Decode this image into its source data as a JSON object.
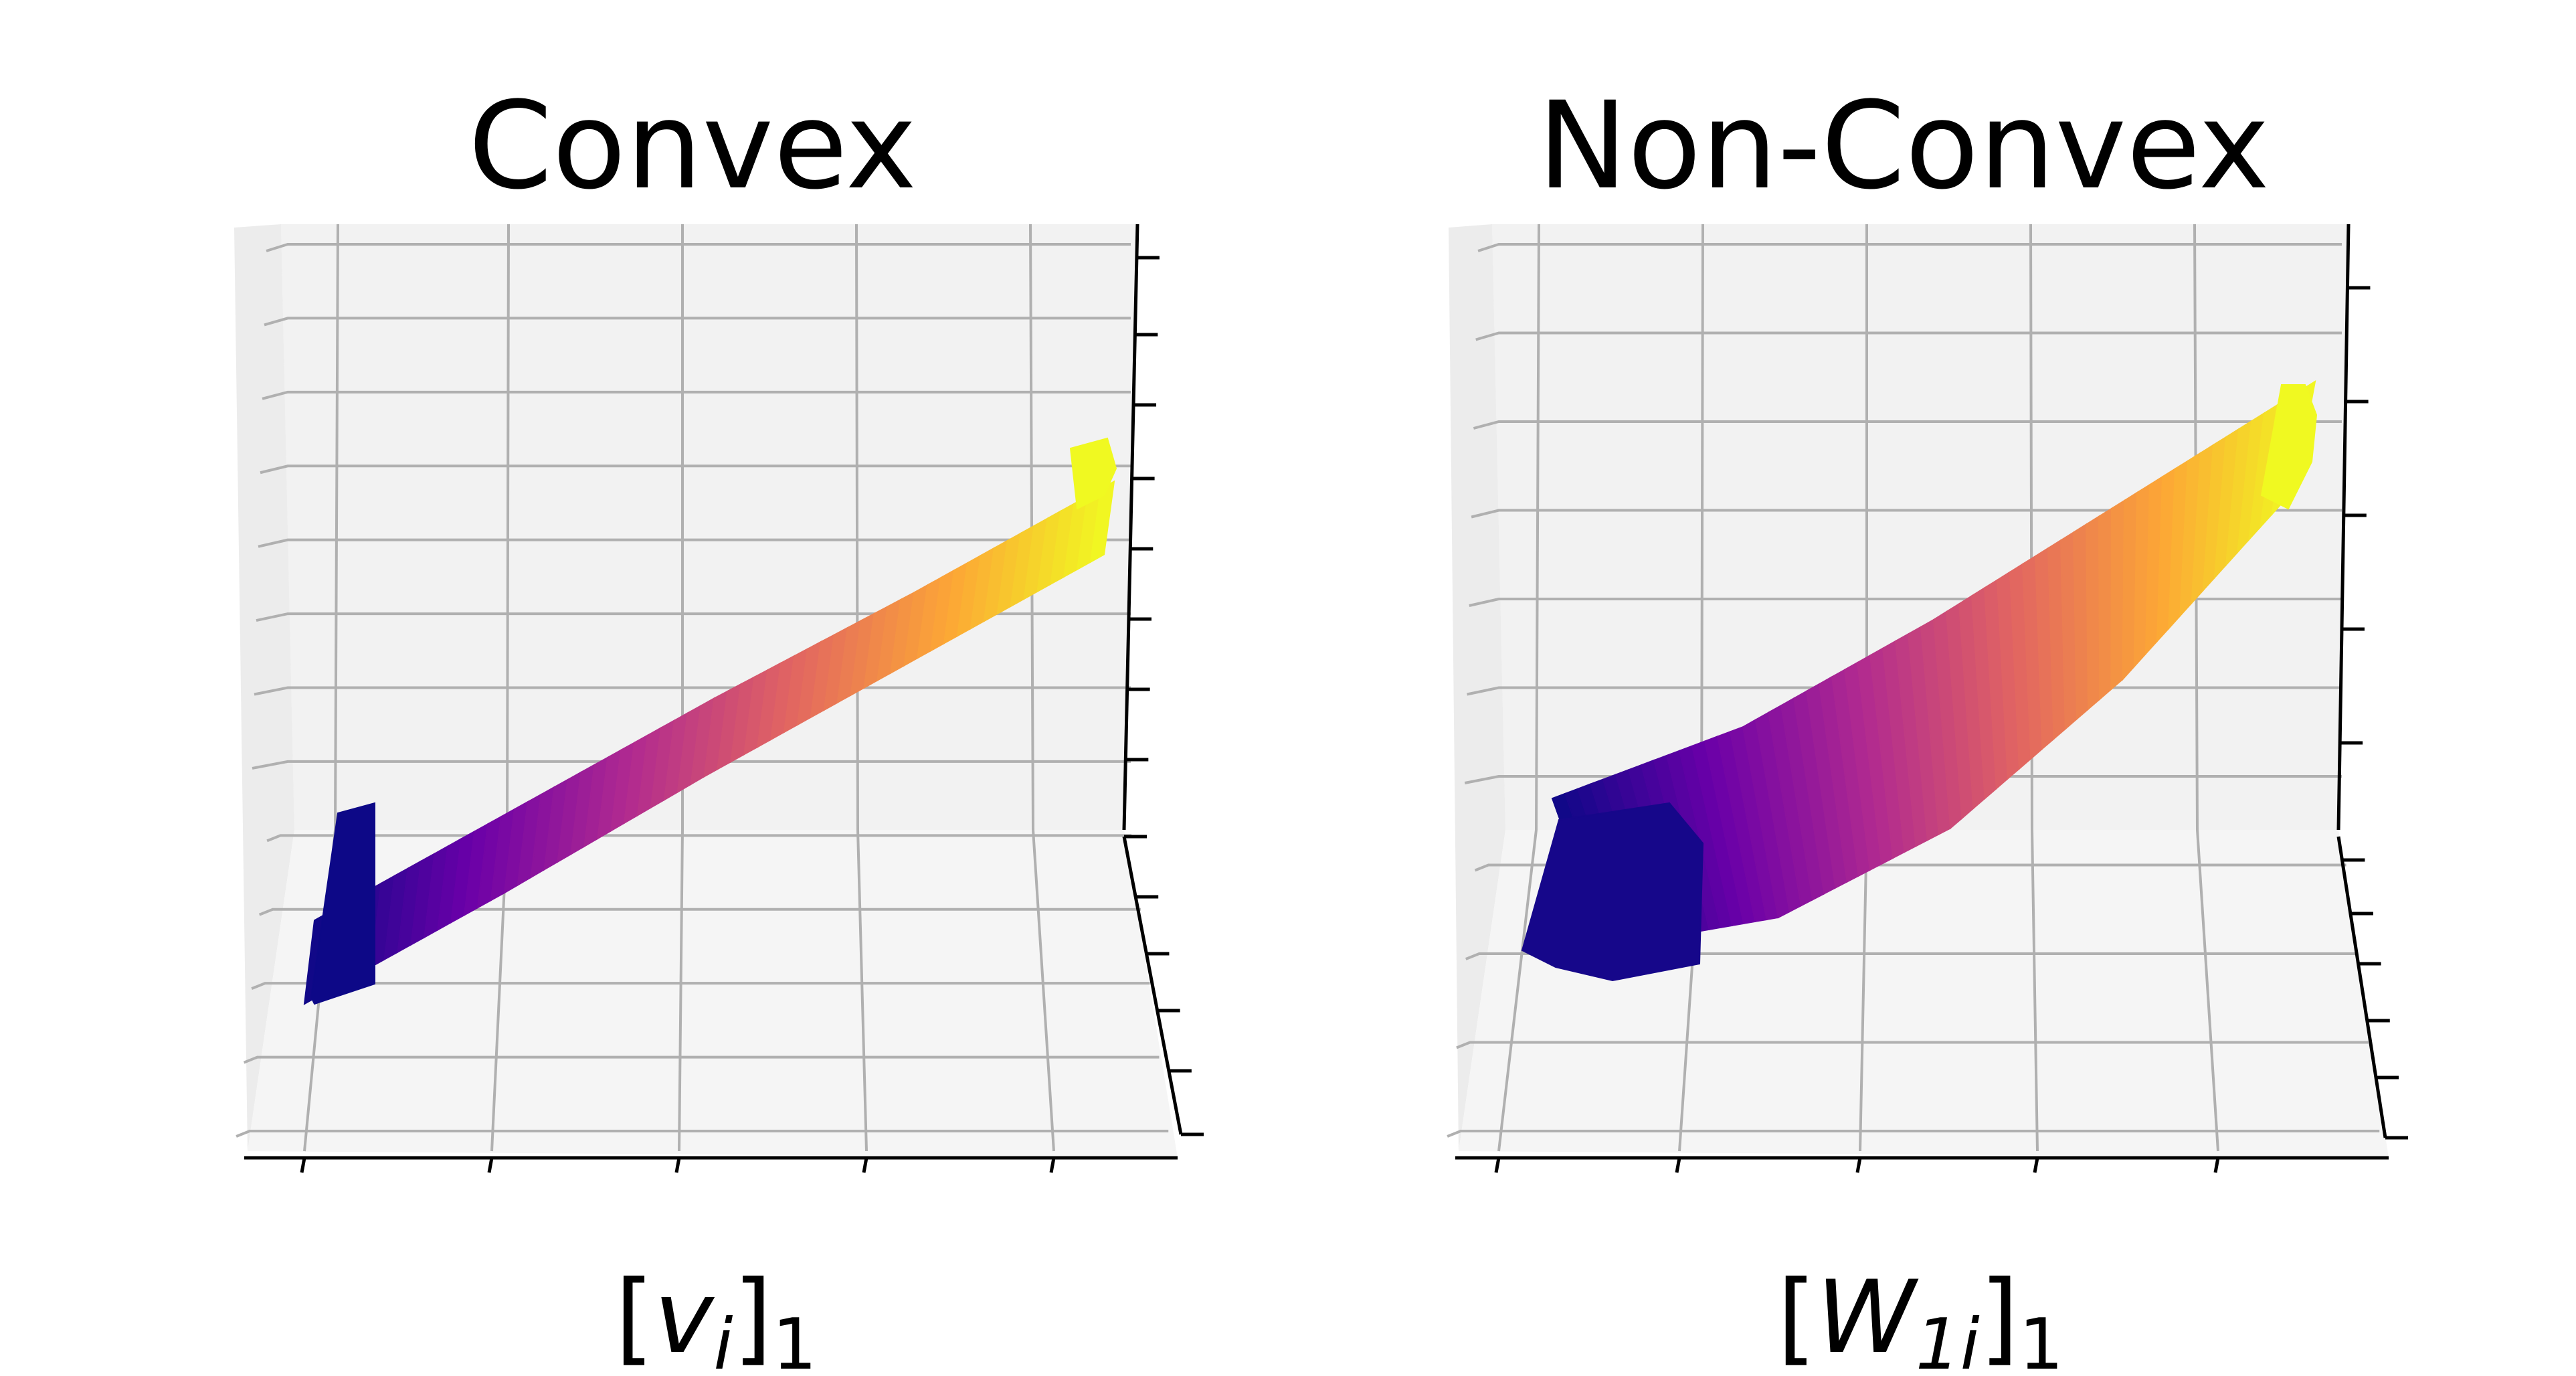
{
  "figure": {
    "panels": [
      {
        "title": "Convex",
        "xlabel_parts": {
          "open": "[",
          "var": "v",
          "sub1": "i",
          "close": "]",
          "sub2": "1"
        }
      },
      {
        "title": "Non-Convex",
        "xlabel_parts": {
          "open": "[",
          "var": "W",
          "sub1": "1i",
          "close": "]",
          "sub2": "1"
        }
      }
    ],
    "colormap": "plasma",
    "colormap_stops": [
      "#0d0887",
      "#6a00a8",
      "#b12a90",
      "#e16462",
      "#fca636",
      "#f0f921"
    ]
  },
  "chart_data": [
    {
      "type": "surface3d",
      "title": "Convex",
      "xlabel": "[v_i]_1",
      "ylabel": "",
      "zlabel": "",
      "grid": true,
      "tick_labels_visible": false,
      "x_ticks": 5,
      "z_ticks": 12,
      "x": [
        0.0,
        0.25,
        0.5,
        0.75,
        1.0
      ],
      "z_upper": [
        0.12,
        0.33,
        0.54,
        0.74,
        0.95
      ],
      "z_lower": [
        0.0,
        0.21,
        0.43,
        0.64,
        0.85
      ],
      "shape": "linear"
    },
    {
      "type": "surface3d",
      "title": "Non-Convex",
      "xlabel": "[W_1i]_1",
      "ylabel": "",
      "zlabel": "",
      "grid": true,
      "tick_labels_visible": false,
      "x_ticks": 5,
      "z_ticks": 10,
      "x": [
        0.0,
        0.25,
        0.5,
        0.75,
        1.0
      ],
      "z_upper": [
        0.3,
        0.42,
        0.6,
        0.8,
        1.0
      ],
      "z_lower": [
        0.05,
        0.1,
        0.25,
        0.5,
        0.82
      ],
      "shape": "convex-curve"
    }
  ]
}
